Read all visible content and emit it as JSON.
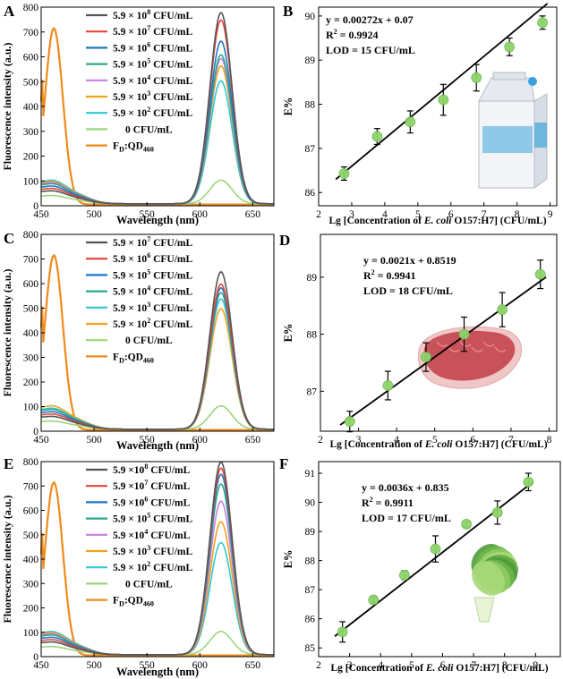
{
  "chart_data": [
    {
      "panel": "A",
      "type": "line",
      "xlabel": "Wavelength (nm)",
      "ylabel": "Fluorescence intensity (a.u.)",
      "xlim": [
        450,
        670
      ],
      "ylim": [
        0,
        800
      ],
      "xticks": [
        450,
        500,
        550,
        600,
        650
      ],
      "yticks": [
        0,
        100,
        200,
        300,
        400,
        500,
        600,
        700,
        800
      ],
      "legend": [
        {
          "name": "5.9 × 10",
          "sup": "8",
          "unit": " CFU/mL",
          "color": "#555555",
          "peak": 770,
          "blue": 55
        },
        {
          "name": "5.9 × 10",
          "sup": "7",
          "unit": " CFU/mL",
          "color": "#e8463c",
          "peak": 740,
          "blue": 65
        },
        {
          "name": "5.9 × 10",
          "sup": "6",
          "unit": " CFU/mL",
          "color": "#2176c7",
          "peak": 655,
          "blue": 75
        },
        {
          "name": "5.9 × 10",
          "sup": "5",
          "unit": " CFU/mL",
          "color": "#2aa88a",
          "peak": 600,
          "blue": 85
        },
        {
          "name": "5.9 × 10",
          "sup": "4",
          "unit": " CFU/mL",
          "color": "#c77fe0",
          "peak": 585,
          "blue": 90
        },
        {
          "name": "5.9 × 10",
          "sup": "3",
          "unit": " CFU/mL",
          "color": "#f0a21a",
          "peak": 555,
          "blue": 95
        },
        {
          "name": "5.9 × 10",
          "sup": "2",
          "unit": " CFU/mL",
          "color": "#2ec8d8",
          "peak": 495,
          "blue": 100
        },
        {
          "name": "0 CFU/mL",
          "sup": "",
          "unit": "",
          "color": "#9bd67a",
          "peak": 95,
          "blue": 35
        },
        {
          "name": "F",
          "sub": "D",
          "name2": ":QD",
          "sub2": "460",
          "color": "#f08a1c",
          "peak": 710,
          "orange": true
        }
      ]
    },
    {
      "panel": "B",
      "type": "scatter",
      "xlabel_parts": [
        "Lg [Concentration of ",
        "E. coli",
        " O157:H7] (CFU/mL)"
      ],
      "ylabel": "E%",
      "xlim": [
        2,
        9.2
      ],
      "ylim": [
        85.7,
        90.2
      ],
      "xticks": [
        2,
        3,
        4,
        5,
        6,
        7,
        8,
        9
      ],
      "yticks": [
        86,
        87,
        88,
        89,
        90
      ],
      "x": [
        2.77,
        3.77,
        4.77,
        5.77,
        6.77,
        7.77,
        8.77
      ],
      "y": [
        86.43,
        87.27,
        87.6,
        88.1,
        88.6,
        89.3,
        89.85
      ],
      "err": [
        0.15,
        0.18,
        0.25,
        0.35,
        0.3,
        0.2,
        0.15
      ],
      "fit": {
        "slope": 0.6224,
        "intercept": 84.73
      },
      "annotations": [
        "y = 0.00272x + 0.07",
        "R",
        "2",
        " = 0.9924",
        "LOD = 15 CFU/mL"
      ],
      "image_label": "milk carton"
    },
    {
      "panel": "C",
      "type": "line",
      "xlabel": "Wavelength (nm)",
      "ylabel": "Fluorescence intensity (a.u.)",
      "xlim": [
        450,
        670
      ],
      "ylim": [
        0,
        800
      ],
      "xticks": [
        450,
        500,
        550,
        600,
        650
      ],
      "yticks": [
        0,
        100,
        200,
        300,
        400,
        500,
        600,
        700,
        800
      ],
      "legend": [
        {
          "name": "5.9 × 10",
          "sup": "7",
          "unit": " CFU/mL",
          "color": "#555555",
          "peak": 640,
          "blue": 55
        },
        {
          "name": "5.9 × 10",
          "sup": "6",
          "unit": " CFU/mL",
          "color": "#e8463c",
          "peak": 590,
          "blue": 65
        },
        {
          "name": "5.9 × 10",
          "sup": "5",
          "unit": " CFU/mL",
          "color": "#2176c7",
          "peak": 575,
          "blue": 75
        },
        {
          "name": "5.9 × 10",
          "sup": "4",
          "unit": " CFU/mL",
          "color": "#2aa88a",
          "peak": 555,
          "blue": 85
        },
        {
          "name": "5.9 × 10",
          "sup": "3",
          "unit": " CFU/mL",
          "color": "#2ec8d8",
          "peak": 530,
          "blue": 90
        },
        {
          "name": "5.9 × 10",
          "sup": "2",
          "unit": " CFU/mL",
          "color": "#f0a21a",
          "peak": 490,
          "blue": 100
        },
        {
          "name": "0 CFU/mL",
          "sup": "",
          "unit": "",
          "color": "#9bd67a",
          "peak": 95,
          "blue": 35
        },
        {
          "name": "F",
          "sub": "D",
          "name2": ":QD",
          "sub2": "460",
          "color": "#f08a1c",
          "peak": 710,
          "orange": true
        }
      ]
    },
    {
      "panel": "D",
      "type": "scatter",
      "xlabel_parts": [
        "Lg [Concentration of ",
        "E. coli",
        " O157:H7] (CFU/mL)"
      ],
      "ylabel": "E%",
      "xlim": [
        2,
        8.2
      ],
      "ylim": [
        86.3,
        89.75
      ],
      "xticks": [
        2,
        3,
        4,
        5,
        6,
        7,
        8
      ],
      "yticks": [
        87,
        88,
        89
      ],
      "x": [
        2.77,
        3.77,
        4.77,
        5.77,
        6.77,
        7.77
      ],
      "y": [
        86.47,
        87.1,
        87.6,
        88.0,
        88.43,
        89.05
      ],
      "err": [
        0.18,
        0.25,
        0.25,
        0.3,
        0.3,
        0.25
      ],
      "fit": {
        "slope": 0.48,
        "intercept": 85.2
      },
      "annotations": [
        "y = 0.0021x + 0.8519",
        "R",
        "2",
        " = 0.9941",
        "LOD = 18 CFU/mL"
      ],
      "image_label": "steak"
    },
    {
      "panel": "E",
      "type": "line",
      "xlabel": "Wavelength (nm)",
      "ylabel": "Fluorescence intensity (a.u.)",
      "xlim": [
        450,
        670
      ],
      "ylim": [
        0,
        800
      ],
      "xticks": [
        450,
        500,
        550,
        600,
        650
      ],
      "yticks": [
        0,
        100,
        200,
        300,
        400,
        500,
        600,
        700,
        800
      ],
      "legend": [
        {
          "name": "5.9 ×10",
          "sup": "8",
          "unit": " CFU/mL",
          "color": "#555555",
          "peak": 790,
          "blue": 55
        },
        {
          "name": "5.9 ×10",
          "sup": "7",
          "unit": " CFU/mL",
          "color": "#e8463c",
          "peak": 765,
          "blue": 65
        },
        {
          "name": "5.9 ×10",
          "sup": "6",
          "unit": " CFU/mL",
          "color": "#2176c7",
          "peak": 740,
          "blue": 75
        },
        {
          "name": "5.9 × 10",
          "sup": "5",
          "unit": " CFU/mL",
          "color": "#2aa88a",
          "peak": 700,
          "blue": 85
        },
        {
          "name": "5.9 ×10",
          "sup": "4",
          "unit": " CFU/mL",
          "color": "#c77fe0",
          "peak": 630,
          "blue": 90
        },
        {
          "name": "5.9 × 10",
          "sup": "3",
          "unit": " CFU/mL",
          "color": "#f0a21a",
          "peak": 545,
          "blue": 95
        },
        {
          "name": "5.9 × 10",
          "sup": "2",
          "unit": " CFU/mL",
          "color": "#2ec8d8",
          "peak": 460,
          "blue": 100
        },
        {
          "name": "0 CFU/mL",
          "sup": "",
          "unit": "",
          "color": "#9bd67a",
          "peak": 95,
          "blue": 35
        },
        {
          "name": "F",
          "sub": "D",
          "name2": ":QD",
          "sub2": "460",
          "color": "#f08a1c",
          "peak": 710,
          "orange": true
        }
      ]
    },
    {
      "panel": "F",
      "type": "scatter",
      "xlabel_parts": [
        "Lg [Concentration of ",
        "E. coli",
        " O157:H7] (CFU/mL)"
      ],
      "ylabel": "E%",
      "xlim": [
        2,
        9.8
      ],
      "ylim": [
        84.7,
        91.4
      ],
      "xticks": [
        2,
        3,
        4,
        5,
        6,
        7,
        8,
        9
      ],
      "yticks": [
        85,
        86,
        87,
        88,
        89,
        90,
        91
      ],
      "x": [
        2.77,
        3.77,
        4.77,
        5.77,
        6.77,
        7.77,
        8.77
      ],
      "y": [
        85.55,
        86.65,
        87.5,
        88.4,
        89.25,
        89.65,
        90.7
      ],
      "err": [
        0.35,
        0.1,
        0.15,
        0.45,
        0.1,
        0.4,
        0.3
      ],
      "fit": {
        "slope": 0.829,
        "intercept": 83.31
      },
      "annotations": [
        "y = 0.0036x + 0.835",
        "R",
        "2",
        " = 0.9911",
        "LOD = 17 CFU/mL"
      ],
      "image_label": "lettuce"
    }
  ],
  "colors": {
    "fit_line": "#000000",
    "marker": "#8fd46a"
  }
}
